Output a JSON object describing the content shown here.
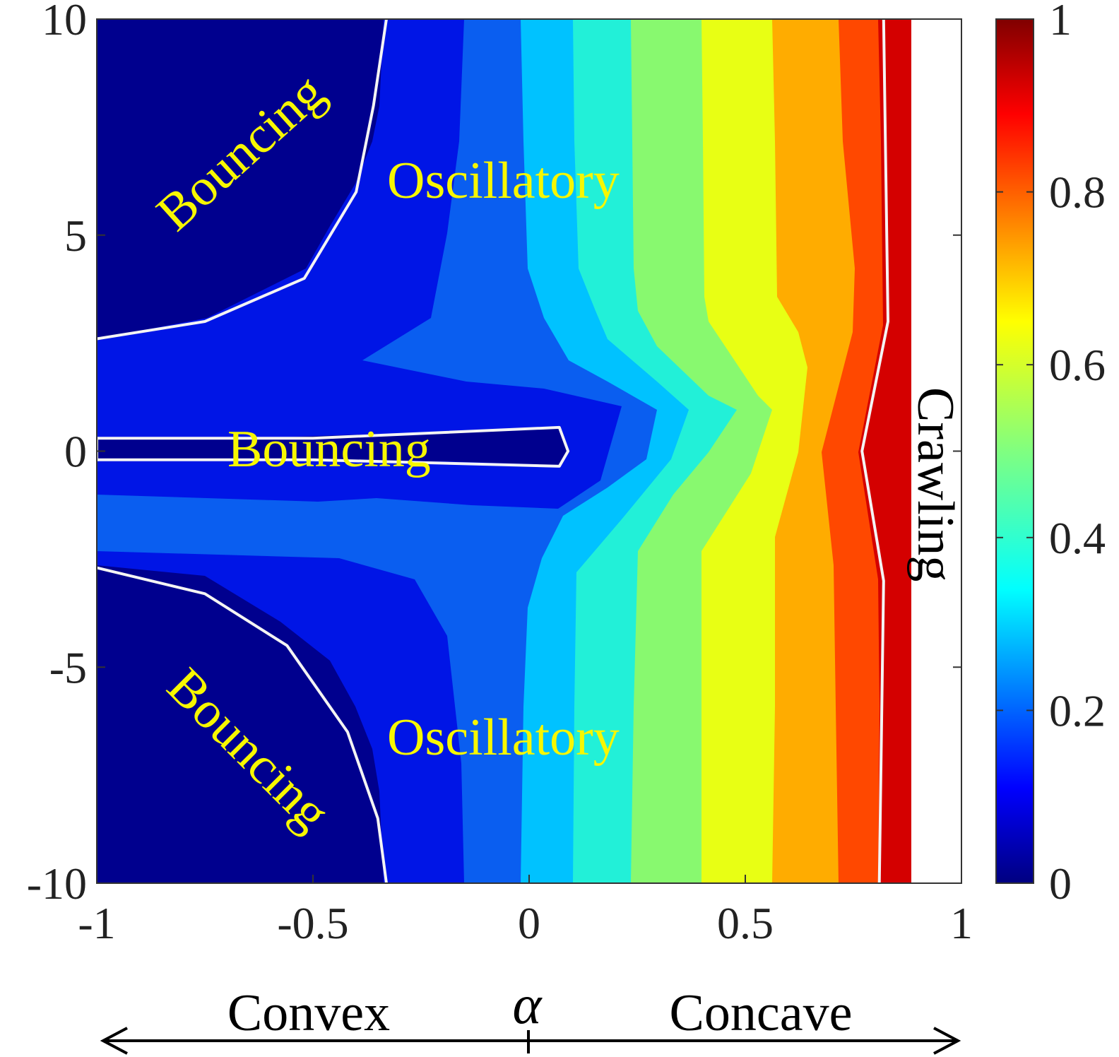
{
  "chart_data": {
    "type": "heatmap",
    "subtype": "filled-contour",
    "title": "",
    "xlabel": "α",
    "ylabel": "",
    "xlim": [
      -1,
      1
    ],
    "ylim": [
      -10,
      10
    ],
    "x_ticks": [
      -1,
      -0.5,
      0,
      0.5,
      1
    ],
    "x_tick_labels": [
      "-1",
      "-0.5",
      "0",
      "0.5",
      "1"
    ],
    "y_ticks": [
      10,
      5,
      0,
      -5,
      -10
    ],
    "y_tick_labels": [
      "10",
      "5",
      "0",
      "-5",
      "-10"
    ],
    "colorbar": {
      "colormap": "jet",
      "range": [
        0,
        1
      ],
      "ticks": [
        1,
        0.8,
        0.6,
        0.4,
        0.2,
        0
      ],
      "tick_labels": [
        "1",
        "0.8",
        "0.6",
        "0.4",
        "0.2",
        "0"
      ]
    },
    "contour_bands": [
      {
        "level": 0.05,
        "color": "#00008e"
      },
      {
        "level": 0.1,
        "color": "#0015e6"
      },
      {
        "level": 0.2,
        "color": "#0a5ef0"
      },
      {
        "level": 0.3,
        "color": "#00c2ff"
      },
      {
        "level": 0.4,
        "color": "#22f0d8"
      },
      {
        "level": 0.5,
        "color": "#88f96f"
      },
      {
        "level": 0.6,
        "color": "#e8ff14"
      },
      {
        "level": 0.7,
        "color": "#ffac00"
      },
      {
        "level": 0.8,
        "color": "#ff4800"
      },
      {
        "level": 0.9,
        "color": "#d40000"
      },
      {
        "level": 1.0,
        "color": "#ffffff"
      }
    ],
    "band_boundaries_x_at_y10": [
      -0.33,
      -0.15,
      -0.02,
      0.1,
      0.24,
      0.4,
      0.56,
      0.71,
      0.82,
      0.89
    ],
    "regime_boundaries": [
      {
        "name": "bouncing-top",
        "points": [
          [
            -1,
            2.6
          ],
          [
            -0.75,
            3.0
          ],
          [
            -0.52,
            4.0
          ],
          [
            -0.4,
            6.0
          ],
          [
            -0.36,
            8.0
          ],
          [
            -0.33,
            10
          ]
        ]
      },
      {
        "name": "bouncing-bottom",
        "points": [
          [
            -1,
            -2.7
          ],
          [
            -0.75,
            -3.3
          ],
          [
            -0.56,
            -4.5
          ],
          [
            -0.42,
            -6.5
          ],
          [
            -0.35,
            -8.5
          ],
          [
            -0.33,
            -10
          ]
        ]
      },
      {
        "name": "bouncing-middle",
        "points": [
          [
            -1,
            0.3
          ],
          [
            -0.5,
            0.3
          ],
          [
            0.07,
            0.55
          ],
          [
            0.09,
            0.0
          ],
          [
            0.07,
            -0.35
          ],
          [
            -0.5,
            -0.2
          ],
          [
            -1,
            -0.2
          ]
        ]
      },
      {
        "name": "crawling",
        "points": [
          [
            0.82,
            10
          ],
          [
            0.83,
            3.0
          ],
          [
            0.77,
            0
          ],
          [
            0.82,
            -3.0
          ],
          [
            0.81,
            -10
          ]
        ]
      }
    ],
    "annotations": {
      "bouncing_top": "Bouncing",
      "oscillatory_top": "Oscillatory",
      "bouncing_middle": "Bouncing",
      "crawling": "Crawling",
      "bouncing_bottom": "Bouncing",
      "oscillatory_bottom": "Oscillatory"
    },
    "bottom_labels": {
      "left": "Convex",
      "center": "α",
      "right": "Concave"
    }
  }
}
